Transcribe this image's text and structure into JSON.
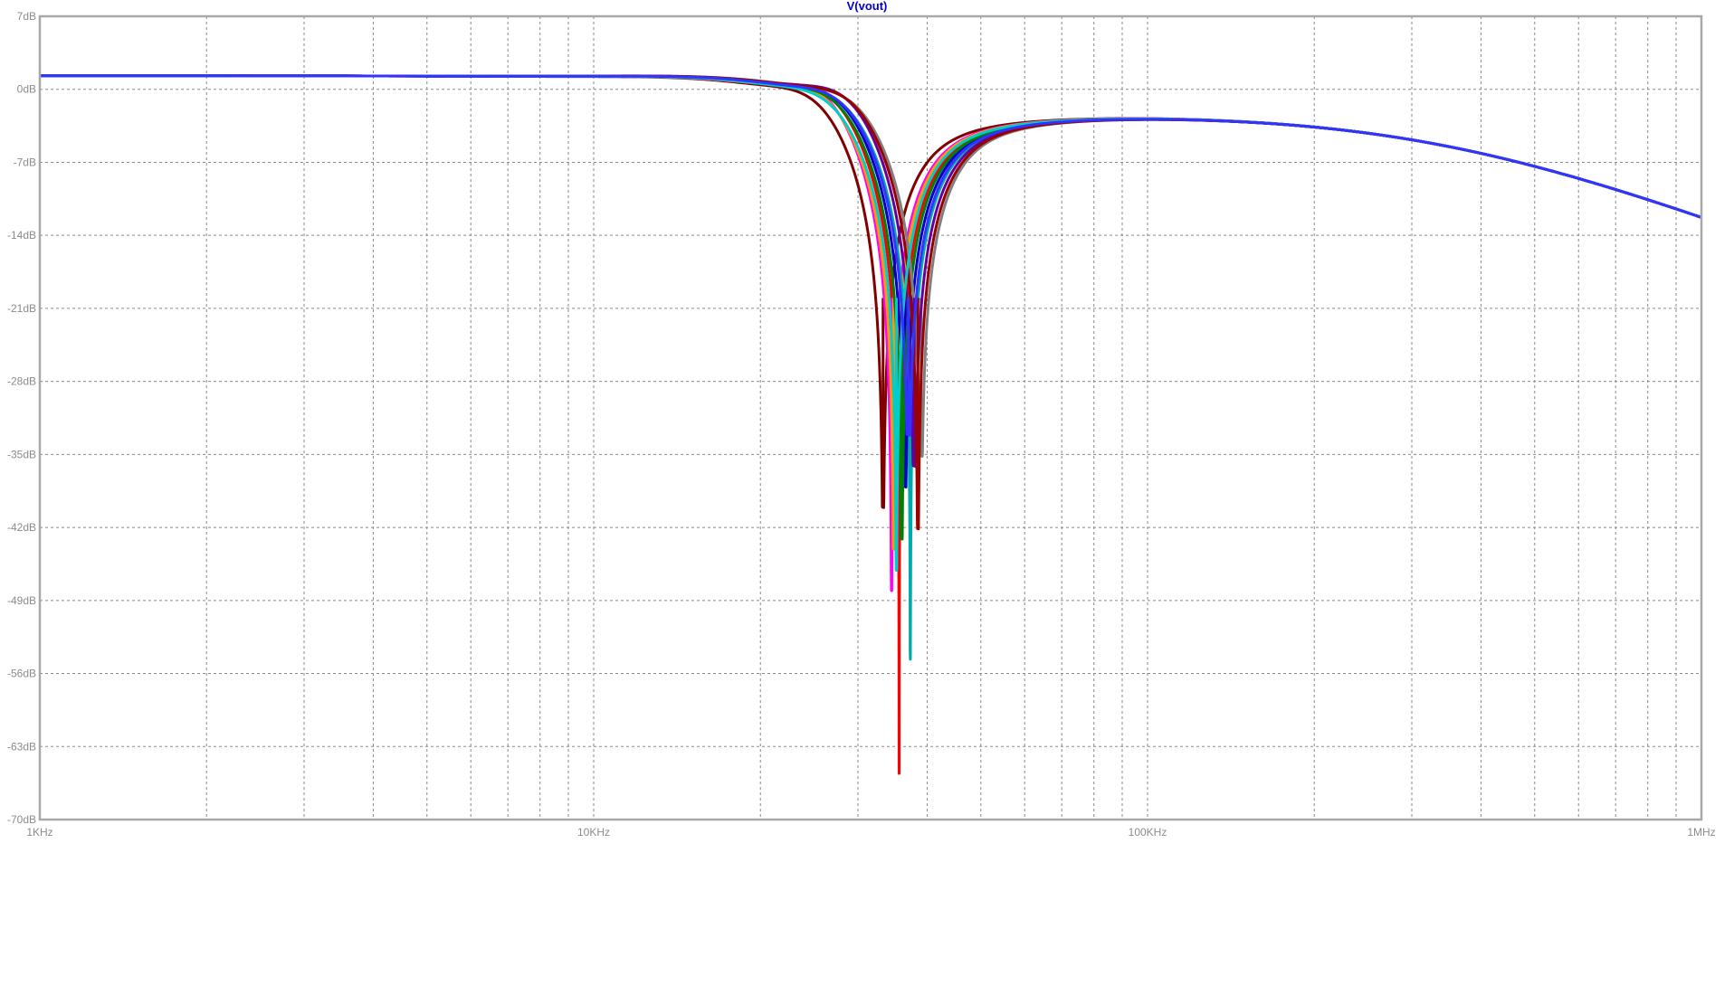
{
  "chart_data": {
    "type": "line",
    "title": "V(vout)",
    "xscale": "log",
    "xlim": [
      1000,
      1000000
    ],
    "ylim": [
      -70,
      7
    ],
    "grid": true,
    "xticks": [
      {
        "value": 1000,
        "label": "1KHz"
      },
      {
        "value": 10000,
        "label": "10KHz"
      },
      {
        "value": 100000,
        "label": "100KHz"
      },
      {
        "value": 1000000,
        "label": "1MHz"
      }
    ],
    "yticks": [
      {
        "value": 7,
        "label": "7dB"
      },
      {
        "value": 0,
        "label": "0dB"
      },
      {
        "value": -7,
        "label": "-7dB"
      },
      {
        "value": -14,
        "label": "-14dB"
      },
      {
        "value": -21,
        "label": "-21dB"
      },
      {
        "value": -28,
        "label": "-28dB"
      },
      {
        "value": -35,
        "label": "-35dB"
      },
      {
        "value": -42,
        "label": "-42dB"
      },
      {
        "value": -49,
        "label": "-49dB"
      },
      {
        "value": -56,
        "label": "-56dB"
      },
      {
        "value": -63,
        "label": "-63dB"
      },
      {
        "value": -70,
        "label": "-70dB"
      }
    ],
    "series": [
      {
        "color": "#800000",
        "notch_hz": 33300,
        "depth_db": -40.0,
        "peak_db": 2.6
      },
      {
        "color": "#ff0000",
        "notch_hz": 35600,
        "depth_db": -65.5,
        "peak_db": 3.0
      },
      {
        "color": "#ff00ff",
        "notch_hz": 34500,
        "depth_db": -48.0,
        "peak_db": 3.3
      },
      {
        "color": "#ff9900",
        "notch_hz": 34800,
        "depth_db": -44.0,
        "peak_db": 2.9
      },
      {
        "color": "#00aaaa",
        "notch_hz": 37300,
        "depth_db": -54.5,
        "peak_db": 2.4
      },
      {
        "color": "#0000cc",
        "notch_hz": 36500,
        "depth_db": -38.0,
        "peak_db": 2.8
      },
      {
        "color": "#008000",
        "notch_hz": 36000,
        "depth_db": -43.0,
        "peak_db": 2.7
      },
      {
        "color": "#7f7f7f",
        "notch_hz": 39000,
        "depth_db": -35.0,
        "peak_db": 2.5
      },
      {
        "color": "#660099",
        "notch_hz": 37900,
        "depth_db": -36.0,
        "peak_db": 3.0
      },
      {
        "color": "#990000",
        "notch_hz": 38500,
        "depth_db": -42.0,
        "peak_db": 2.7
      },
      {
        "color": "#00cccc",
        "notch_hz": 35200,
        "depth_db": -46.0,
        "peak_db": 2.5
      },
      {
        "color": "#3333ff",
        "notch_hz": 37000,
        "depth_db": -33.0,
        "peak_db": 2.6
      }
    ]
  }
}
